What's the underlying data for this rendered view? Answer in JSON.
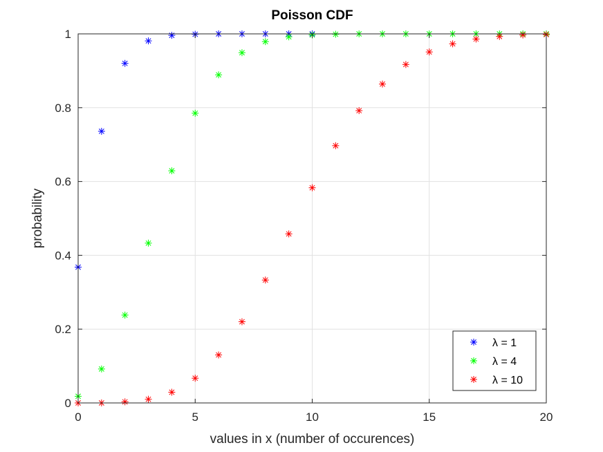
{
  "chart_data": {
    "type": "scatter",
    "title": "Poisson CDF",
    "xlabel": "values in x (number of occurences)",
    "ylabel": "probability",
    "xlim": [
      0,
      20
    ],
    "ylim": [
      0,
      1
    ],
    "xticks": [
      0,
      5,
      10,
      15,
      20
    ],
    "yticks": [
      0,
      0.2,
      0.4,
      0.6,
      0.8,
      1
    ],
    "xtick_labels": [
      "0",
      "5",
      "10",
      "15",
      "20"
    ],
    "ytick_labels": [
      "0",
      "0.2",
      "0.4",
      "0.6",
      "0.8",
      "1"
    ],
    "grid": true,
    "legend_position": "bottom-right",
    "marker": "asterisk",
    "x": [
      0,
      1,
      2,
      3,
      4,
      5,
      6,
      7,
      8,
      9,
      10,
      11,
      12,
      13,
      14,
      15,
      16,
      17,
      18,
      19,
      20
    ],
    "series": [
      {
        "name": "λ = 1",
        "color": "#0000ff",
        "values": [
          0.368,
          0.736,
          0.92,
          0.981,
          0.996,
          0.999,
          1.0,
          1.0,
          1.0,
          1.0,
          1.0
        ]
      },
      {
        "name": "λ = 4",
        "color": "#00ff00",
        "values": [
          0.018,
          0.092,
          0.238,
          0.433,
          0.629,
          0.785,
          0.889,
          0.949,
          0.979,
          0.992,
          0.997,
          0.999,
          1.0,
          1.0,
          1.0,
          1.0,
          1.0,
          1.0,
          1.0,
          1.0,
          1.0
        ]
      },
      {
        "name": "λ = 10",
        "color": "#ff0000",
        "values": [
          0.0,
          0.0,
          0.003,
          0.01,
          0.029,
          0.067,
          0.13,
          0.22,
          0.333,
          0.458,
          0.583,
          0.697,
          0.792,
          0.864,
          0.917,
          0.951,
          0.973,
          0.986,
          0.993,
          0.997,
          0.998
        ]
      }
    ]
  }
}
